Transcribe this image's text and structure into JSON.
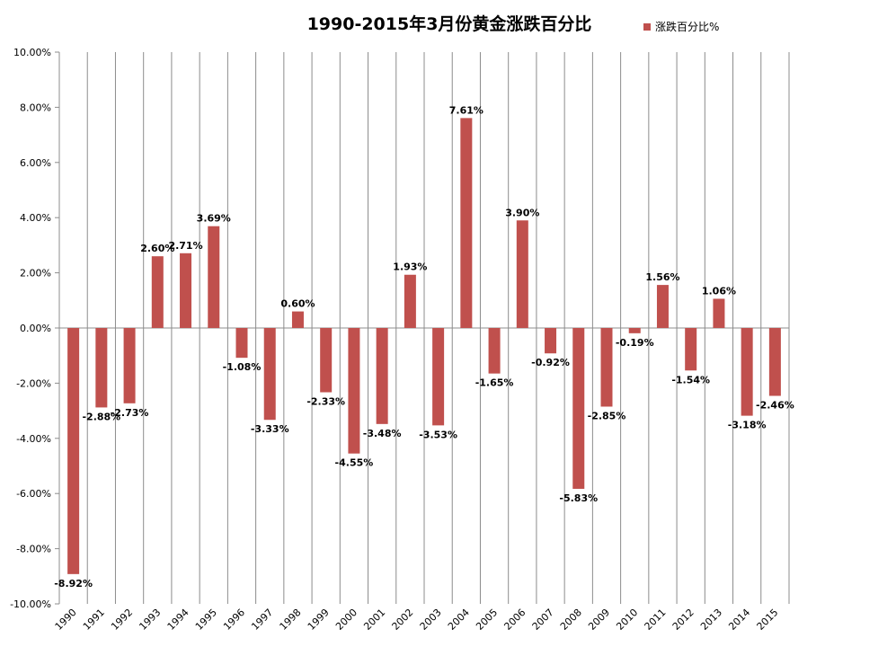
{
  "chart_data": {
    "type": "bar",
    "title": "1990-2015年3月份黄金涨跌百分比",
    "legend_position": "top-right",
    "grid": "vertical",
    "categories": [
      "1990",
      "1991",
      "1992",
      "1993",
      "1994",
      "1995",
      "1996",
      "1997",
      "1998",
      "1999",
      "2000",
      "2001",
      "2002",
      "2003",
      "2004",
      "2005",
      "2006",
      "2007",
      "2008",
      "2009",
      "2010",
      "2011",
      "2012",
      "2013",
      "2014",
      "2015"
    ],
    "series": [
      {
        "name": "涨跌百分比%",
        "color": "#c0504d",
        "values": [
          -8.92,
          -2.88,
          -2.73,
          2.6,
          2.71,
          3.69,
          -1.08,
          -3.33,
          0.6,
          -2.33,
          -4.55,
          -3.48,
          1.93,
          -3.53,
          7.61,
          -1.65,
          3.9,
          -0.92,
          -5.83,
          -2.85,
          -0.19,
          1.56,
          -1.54,
          1.06,
          -3.18,
          -2.46
        ],
        "data_labels": [
          "-8.92%",
          "-2.88%",
          "-2.73%",
          "2.60%",
          "2.71%",
          "3.69%",
          "-1.08%",
          "-3.33%",
          "0.60%",
          "-2.33%",
          "-4.55%",
          "-3.48%",
          "1.93%",
          "-3.53%",
          "7.61%",
          "-1.65%",
          "3.90%",
          "-0.92%",
          "-5.83%",
          "-2.85%",
          "-0.19%",
          "1.56%",
          "-1.54%",
          "1.06%",
          "-3.18%",
          "-2.46%"
        ]
      }
    ],
    "ylim": [
      -10,
      10
    ],
    "yticks": [
      10,
      8,
      6,
      4,
      2,
      0,
      -2,
      -4,
      -6,
      -8,
      -10
    ],
    "ytick_labels": [
      "10.00%",
      "8.00%",
      "6.00%",
      "4.00%",
      "2.00%",
      "0.00%",
      "-2.00%",
      "-4.00%",
      "-6.00%",
      "-8.00%",
      "-10.00%"
    ]
  }
}
